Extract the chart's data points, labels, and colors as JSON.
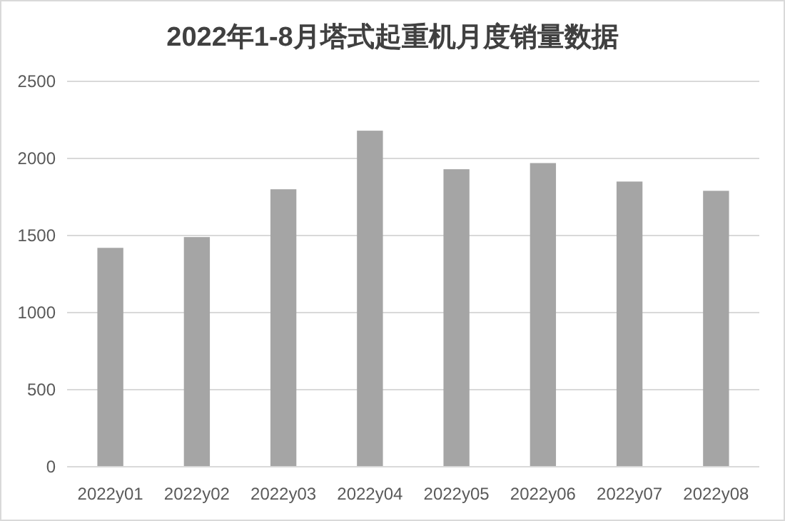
{
  "chart_data": {
    "type": "bar",
    "title": "2022年1-8月塔式起重机月度销量数据",
    "categories": [
      "2022y01",
      "2022y02",
      "2022y03",
      "2022y04",
      "2022y05",
      "2022y06",
      "2022y07",
      "2022y08"
    ],
    "values": [
      1420,
      1490,
      1800,
      2180,
      1930,
      1970,
      1850,
      1790
    ],
    "color": "#a5a5a5",
    "ylim": [
      0,
      2500
    ],
    "yticks": [
      0,
      500,
      1000,
      1500,
      2000,
      2500
    ],
    "grid": "y"
  }
}
